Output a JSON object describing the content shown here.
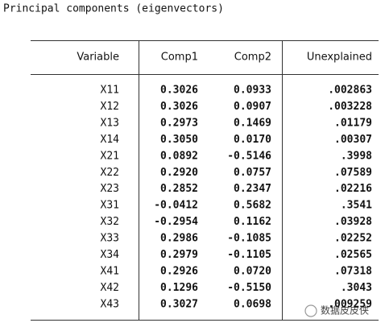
{
  "title": "Principal components (eigenvectors)",
  "table": {
    "headers": [
      "Variable",
      "Comp1",
      "Comp2",
      "Unexplained"
    ],
    "rows": [
      [
        "X11",
        "0.3026",
        "0.0933",
        ".002863"
      ],
      [
        "X12",
        "0.3026",
        "0.0907",
        ".003228"
      ],
      [
        "X13",
        "0.2973",
        "0.1469",
        ".01179"
      ],
      [
        "X14",
        "0.3050",
        "0.0170",
        ".00307"
      ],
      [
        "X21",
        "0.0892",
        "-0.5146",
        ".3998"
      ],
      [
        "X22",
        "0.2920",
        "0.0757",
        ".07589"
      ],
      [
        "X23",
        "0.2852",
        "0.2347",
        ".02216"
      ],
      [
        "X31",
        "-0.0412",
        "0.5682",
        ".3541"
      ],
      [
        "X32",
        "-0.2954",
        "0.1162",
        ".03928"
      ],
      [
        "X33",
        "0.2986",
        "-0.1085",
        ".02252"
      ],
      [
        "X34",
        "0.2979",
        "-0.1105",
        ".02565"
      ],
      [
        "X41",
        "0.2926",
        "0.0720",
        ".07318"
      ],
      [
        "X42",
        "0.1296",
        "-0.5150",
        ".3043"
      ],
      [
        "X43",
        "0.3027",
        "0.0698",
        ".009259"
      ]
    ]
  },
  "watermark": "数据皮皮侠"
}
